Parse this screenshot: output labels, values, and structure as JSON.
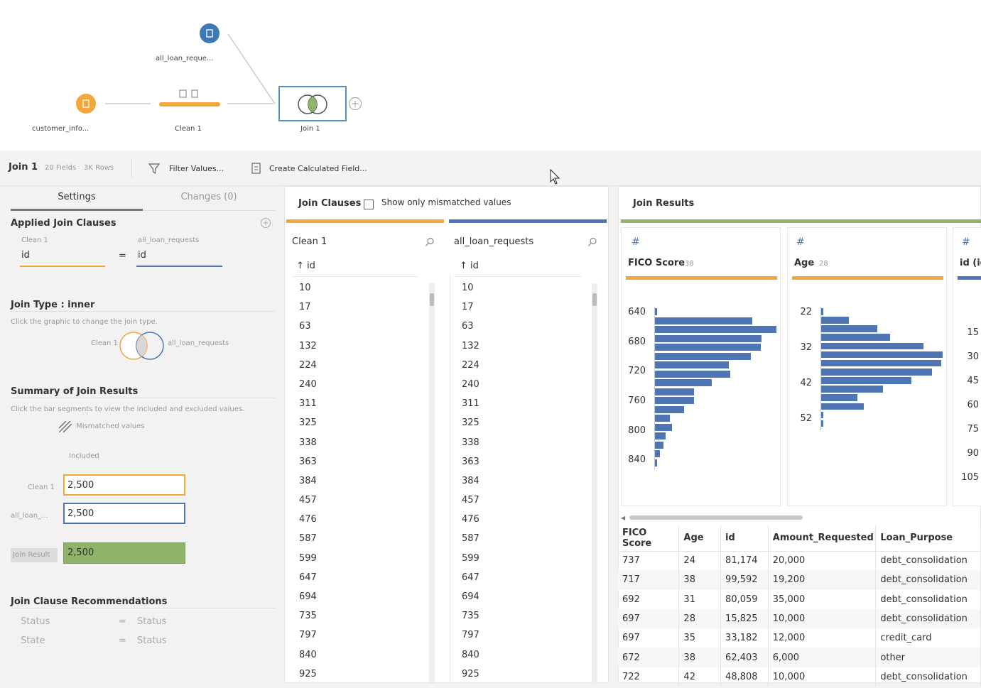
{
  "flow": {
    "nodes": [
      {
        "label": "all_loan_reque...",
        "color": "#3f79b5"
      },
      {
        "label": "customer_info...",
        "color": "#f2a73b"
      },
      {
        "label": "Clean 1",
        "color": "#f2a73b"
      },
      {
        "label": "Join 1",
        "color": "#5b8fc7"
      }
    ],
    "add_icon": "plus-circle-icon"
  },
  "toolbar": {
    "title": "Join 1",
    "fields": "20 Fields",
    "rows": "3K Rows",
    "filter_label": "Filter Values...",
    "calc_label": "Create Calculated Field..."
  },
  "settings": {
    "tab_settings": "Settings",
    "tab_changes": "Changes (0)",
    "applied_title": "Applied Join Clauses",
    "left_source": "Clean 1",
    "right_source": "all_loan_requests",
    "left_field": "id",
    "operator": "=",
    "right_field": "id",
    "join_type_title": "Join Type : inner",
    "join_type_hint": "Click the graphic to change the join type.",
    "venn_left": "Clean 1",
    "venn_right": "all_loan_requests",
    "summary_title": "Summary of Join Results",
    "summary_hint": "Click the bar segments to view the included and excluded values.",
    "mismatched_label": "Mismatched values",
    "included_label": "Included",
    "rows": [
      {
        "label": "Clean 1",
        "value": "2,500",
        "color": "#f2a73b"
      },
      {
        "label": "all_loan_...",
        "value": "2,500",
        "color": "#4f76b3"
      },
      {
        "label": "Join Result",
        "value": "2,500",
        "color": "#8fb36a"
      }
    ],
    "recs_title": "Join Clause Recommendations",
    "recs": [
      {
        "left": "Status",
        "op": "=",
        "right": "Status"
      },
      {
        "left": "State",
        "op": "=",
        "right": "Status"
      }
    ]
  },
  "clauses": {
    "title": "Join Clauses",
    "mismatch_label": "Show only mismatched values",
    "left": {
      "source": "Clean 1",
      "field": "id"
    },
    "right": {
      "source": "all_loan_requests",
      "field": "id"
    },
    "ids": [
      "10",
      "17",
      "63",
      "132",
      "224",
      "240",
      "311",
      "325",
      "338",
      "363",
      "384",
      "457",
      "476",
      "587",
      "599",
      "647",
      "694",
      "735",
      "797",
      "840",
      "925"
    ]
  },
  "results": {
    "title": "Join Results",
    "cards": [
      {
        "name": "FICO Score",
        "count": "38",
        "type_icon": "hash-icon",
        "ticks": [
          "640",
          "680",
          "720",
          "760",
          "800",
          "840"
        ]
      },
      {
        "name": "Age",
        "count": "28",
        "type_icon": "hash-icon",
        "ticks": [
          "22",
          "32",
          "42",
          "52"
        ]
      },
      {
        "name": "id (ic",
        "count": "",
        "type_icon": "hash-icon",
        "ticks": [
          "15",
          "30",
          "45",
          "60",
          "75",
          "90",
          "105"
        ]
      }
    ],
    "fico_bars": [
      2,
      80,
      100,
      88,
      87,
      79,
      61,
      62,
      47,
      32,
      32,
      24,
      12,
      14,
      9,
      7,
      4,
      2
    ],
    "age_bars": [
      2,
      23,
      46,
      57,
      84,
      100,
      99,
      91,
      74,
      51,
      30,
      35,
      2,
      2
    ],
    "grid": {
      "columns": [
        "FICO Score",
        "Age",
        "id",
        "Amount_Requested",
        "Loan_Purpose"
      ],
      "rows": [
        [
          "737",
          "24",
          "81,174",
          "20,000",
          "debt_consolidation"
        ],
        [
          "717",
          "38",
          "99,592",
          "19,200",
          "debt_consolidation"
        ],
        [
          "692",
          "31",
          "80,059",
          "35,000",
          "debt_consolidation"
        ],
        [
          "697",
          "28",
          "15,825",
          "10,000",
          "debt_consolidation"
        ],
        [
          "697",
          "35",
          "33,182",
          "12,000",
          "credit_card"
        ],
        [
          "672",
          "38",
          "62,403",
          "6,000",
          "other"
        ],
        [
          "722",
          "42",
          "48,808",
          "10,000",
          "debt_consolidation"
        ]
      ]
    }
  }
}
